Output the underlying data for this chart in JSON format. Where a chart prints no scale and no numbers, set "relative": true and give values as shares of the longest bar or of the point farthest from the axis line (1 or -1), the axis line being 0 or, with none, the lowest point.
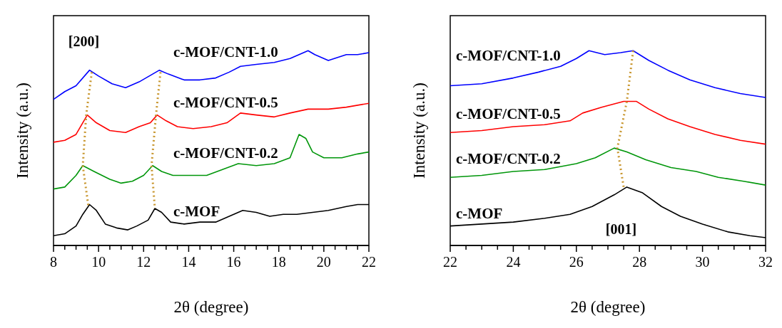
{
  "chart_data": [
    {
      "type": "line",
      "relative": true,
      "xlabel": "2θ (degree)",
      "ylabel": "Intensity (a.u.)",
      "marker": "none",
      "xlim": [
        8,
        22
      ],
      "xticks": [
        8,
        {
          "value": 8.5,
          "label": null
        },
        {
          "value": 9,
          "label": null
        },
        {
          "value": 9.5,
          "label": null
        },
        10,
        {
          "value": 10.5,
          "label": null
        },
        {
          "value": 11,
          "label": null
        },
        {
          "value": 11.5,
          "label": null
        },
        12,
        {
          "value": 12.5,
          "label": null
        },
        {
          "value": 13,
          "label": null
        },
        {
          "value": 13.5,
          "label": null
        },
        14,
        {
          "value": 14.5,
          "label": null
        },
        {
          "value": 15,
          "label": null
        },
        {
          "value": 15.5,
          "label": null
        },
        16,
        {
          "value": 16.5,
          "label": null
        },
        {
          "value": 17,
          "label": null
        },
        {
          "value": 17.5,
          "label": null
        },
        18,
        {
          "value": 18.5,
          "label": null
        },
        {
          "value": 19,
          "label": null
        },
        {
          "value": 19.5,
          "label": null
        },
        20,
        {
          "value": 20.5,
          "label": null
        },
        {
          "value": 21,
          "label": null
        },
        {
          "value": 21.5,
          "label": null
        },
        22
      ],
      "series": [
        {
          "name": "c-MOF",
          "color": "#000000",
          "x": [
            8,
            8.5,
            9,
            9.3,
            9.6,
            9.9,
            10.3,
            10.8,
            11.3,
            11.7,
            12.2,
            12.5,
            12.8,
            13.2,
            13.8,
            14.5,
            15.2,
            15.8,
            16.4,
            17,
            17.6,
            18.2,
            18.8,
            19.5,
            20.2,
            21,
            21.5,
            22
          ],
          "values": [
            0.05,
            0.06,
            0.1,
            0.16,
            0.21,
            0.18,
            0.11,
            0.09,
            0.08,
            0.1,
            0.13,
            0.19,
            0.17,
            0.12,
            0.11,
            0.12,
            0.12,
            0.15,
            0.18,
            0.17,
            0.15,
            0.16,
            0.16,
            0.17,
            0.18,
            0.2,
            0.21,
            0.21
          ]
        },
        {
          "name": "c-MOF/CNT-0.2",
          "color": "#00960a",
          "x": [
            8,
            8.5,
            9,
            9.3,
            9.8,
            10.5,
            11,
            11.5,
            12,
            12.4,
            12.8,
            13.3,
            14,
            14.8,
            15.5,
            16.2,
            17,
            17.8,
            18.5,
            18.9,
            19.2,
            19.5,
            20,
            20.8,
            21.5,
            22
          ],
          "values": [
            0.29,
            0.3,
            0.36,
            0.41,
            0.38,
            0.34,
            0.32,
            0.33,
            0.36,
            0.41,
            0.38,
            0.36,
            0.36,
            0.36,
            0.39,
            0.42,
            0.41,
            0.42,
            0.45,
            0.57,
            0.55,
            0.48,
            0.45,
            0.45,
            0.47,
            0.48
          ]
        },
        {
          "name": "c-MOF/CNT-0.5",
          "color": "#ff0000",
          "x": [
            8,
            8.5,
            9,
            9.5,
            9.9,
            10.5,
            11.2,
            11.8,
            12.3,
            12.6,
            13,
            13.5,
            14.2,
            15,
            15.7,
            16.3,
            17,
            17.8,
            18.5,
            19.3,
            20.2,
            21,
            22
          ],
          "values": [
            0.53,
            0.54,
            0.57,
            0.67,
            0.63,
            0.59,
            0.58,
            0.61,
            0.63,
            0.67,
            0.64,
            0.61,
            0.6,
            0.61,
            0.63,
            0.68,
            0.67,
            0.66,
            0.68,
            0.7,
            0.7,
            0.71,
            0.73
          ]
        },
        {
          "name": "c-MOF/CNT-1.0",
          "color": "#0000ff",
          "x": [
            8,
            8.5,
            9,
            9.6,
            10,
            10.6,
            11.2,
            11.8,
            12.4,
            12.7,
            13.1,
            13.8,
            14.5,
            15.2,
            15.8,
            16.3,
            17,
            17.8,
            18.5,
            19.3,
            19.6,
            20.2,
            21,
            21.5,
            22
          ],
          "values": [
            0.75,
            0.79,
            0.82,
            0.9,
            0.87,
            0.83,
            0.81,
            0.84,
            0.88,
            0.9,
            0.88,
            0.85,
            0.85,
            0.86,
            0.89,
            0.92,
            0.93,
            0.94,
            0.96,
            1,
            0.98,
            0.95,
            0.98,
            0.98,
            0.99
          ]
        },
        {
          "color": "#c8962e",
          "line_style": "dotted",
          "x": [
            9.7,
            9.45,
            9.3,
            9.55
          ],
          "values": [
            0.89,
            0.67,
            0.41,
            0.2
          ]
        },
        {
          "color": "#c8962e",
          "line_style": "dotted",
          "x": [
            12.75,
            12.55,
            12.35,
            12.5
          ],
          "values": [
            0.89,
            0.67,
            0.41,
            0.19
          ]
        }
      ],
      "annotations": [
        {
          "text": "[200]",
          "x": 9.6,
          "y": 0.9
        }
      ]
    },
    {
      "type": "line",
      "relative": true,
      "xlabel": "2θ (degree)",
      "ylabel": "Intensity (a.u.)",
      "marker": "none",
      "xlim": [
        22,
        32
      ],
      "xticks": [
        22,
        {
          "value": 22.5,
          "label": null
        },
        {
          "value": 23,
          "label": null
        },
        {
          "value": 23.5,
          "label": null
        },
        24,
        {
          "value": 24.5,
          "label": null
        },
        {
          "value": 25,
          "label": null
        },
        {
          "value": 25.5,
          "label": null
        },
        26,
        {
          "value": 26.5,
          "label": null
        },
        {
          "value": 27,
          "label": null
        },
        {
          "value": 27.5,
          "label": null
        },
        28,
        {
          "value": 28.5,
          "label": null
        },
        {
          "value": 29,
          "label": null
        },
        {
          "value": 29.5,
          "label": null
        },
        30,
        {
          "value": 30.5,
          "label": null
        },
        {
          "value": 31,
          "label": null
        },
        {
          "value": 31.5,
          "label": null
        },
        32
      ],
      "series": [
        {
          "name": "c-MOF",
          "color": "#000000",
          "x": [
            22,
            23,
            24,
            25,
            25.8,
            26.5,
            27.2,
            27.6,
            28.1,
            28.7,
            29.3,
            30,
            30.8,
            31.5,
            32
          ],
          "values": [
            0.1,
            0.11,
            0.12,
            0.14,
            0.16,
            0.2,
            0.26,
            0.3,
            0.27,
            0.2,
            0.15,
            0.11,
            0.07,
            0.05,
            0.04
          ]
        },
        {
          "name": "c-MOF/CNT-0.2",
          "color": "#00960a",
          "x": [
            22,
            23,
            24,
            25,
            26,
            26.6,
            27.2,
            27.6,
            28.2,
            29,
            29.8,
            30.5,
            31.3,
            32
          ],
          "values": [
            0.35,
            0.36,
            0.38,
            0.39,
            0.42,
            0.45,
            0.5,
            0.48,
            0.44,
            0.4,
            0.38,
            0.35,
            0.33,
            0.31
          ]
        },
        {
          "name": "c-MOF/CNT-0.5",
          "color": "#ff0000",
          "x": [
            22,
            23,
            24,
            25,
            25.8,
            26.2,
            26.8,
            27.5,
            27.9,
            28.3,
            28.9,
            29.6,
            30.4,
            31.2,
            32
          ],
          "values": [
            0.58,
            0.59,
            0.61,
            0.62,
            0.64,
            0.68,
            0.71,
            0.74,
            0.74,
            0.7,
            0.65,
            0.61,
            0.57,
            0.54,
            0.52
          ]
        },
        {
          "name": "c-MOF/CNT-1.0",
          "color": "#0000ff",
          "x": [
            22,
            23,
            24,
            24.8,
            25.5,
            26,
            26.4,
            26.9,
            27.4,
            27.8,
            28.3,
            28.9,
            29.6,
            30.4,
            31.2,
            32
          ],
          "values": [
            0.82,
            0.83,
            0.86,
            0.89,
            0.92,
            0.96,
            1,
            0.98,
            0.99,
            1,
            0.95,
            0.9,
            0.85,
            0.81,
            0.78,
            0.76
          ]
        },
        {
          "color": "#c8962e",
          "line_style": "dotted",
          "x": [
            27.8,
            27.6,
            27.3,
            27.5
          ],
          "values": [
            1,
            0.74,
            0.5,
            0.3
          ]
        }
      ],
      "annotations": [
        {
          "text": "[001]",
          "x": 27.6,
          "y": 0.3
        }
      ]
    }
  ]
}
